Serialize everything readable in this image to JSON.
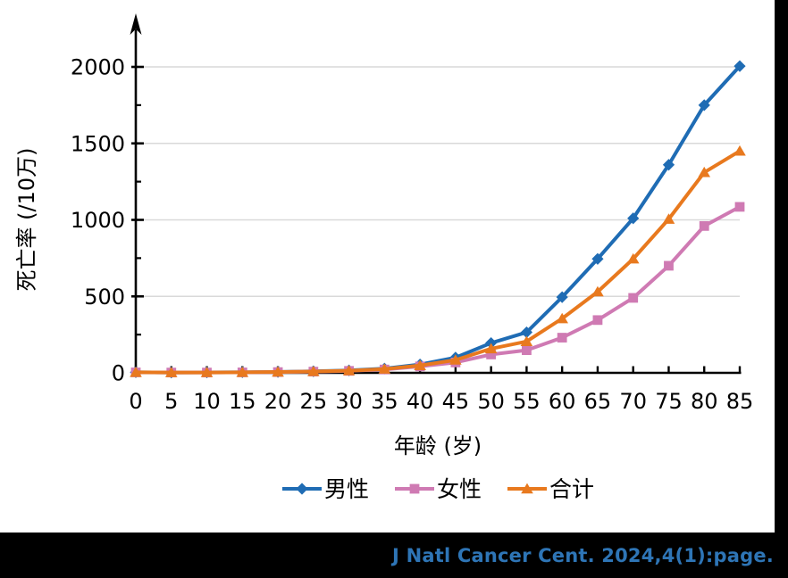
{
  "page": {
    "background": "#ffffff",
    "frame_color": "#000000"
  },
  "citation": {
    "text": "J Natl Cancer Cent. 2024,4(1):page.",
    "color": "#2E75B6"
  },
  "chart_data": {
    "type": "line",
    "title": "",
    "xlabel": "年龄 (岁)",
    "ylabel": "死亡率 (/10万)",
    "x": [
      0,
      5,
      10,
      15,
      20,
      25,
      30,
      35,
      40,
      45,
      50,
      55,
      60,
      65,
      70,
      75,
      80,
      85
    ],
    "xlim": [
      0,
      85
    ],
    "ylim": [
      0,
      2250
    ],
    "y_major_ticks": [
      0,
      500,
      1000,
      1500,
      2000
    ],
    "y_minor_interval": 250,
    "grid": "horizontal-major",
    "gridline_color": "#d9d9d9",
    "axis_color": "#000000",
    "legend_position": "bottom",
    "series": [
      {
        "name": "男性",
        "color": "#1f6cb4",
        "marker": "diamond",
        "values": [
          4,
          2,
          3,
          4,
          6,
          10,
          16,
          28,
          55,
          100,
          195,
          265,
          495,
          745,
          1010,
          1360,
          1750,
          2005
        ]
      },
      {
        "name": "女性",
        "color": "#cf7ab3",
        "marker": "square",
        "values": [
          3,
          2,
          2,
          3,
          5,
          8,
          13,
          22,
          42,
          68,
          120,
          148,
          230,
          345,
          490,
          700,
          960,
          1085
        ]
      },
      {
        "name": "合计",
        "color": "#e8791e",
        "marker": "triangle",
        "values": [
          3.5,
          2,
          2.5,
          3.5,
          5.5,
          9,
          14,
          25,
          48,
          84,
          158,
          205,
          355,
          530,
          745,
          1005,
          1310,
          1450
        ]
      }
    ]
  }
}
